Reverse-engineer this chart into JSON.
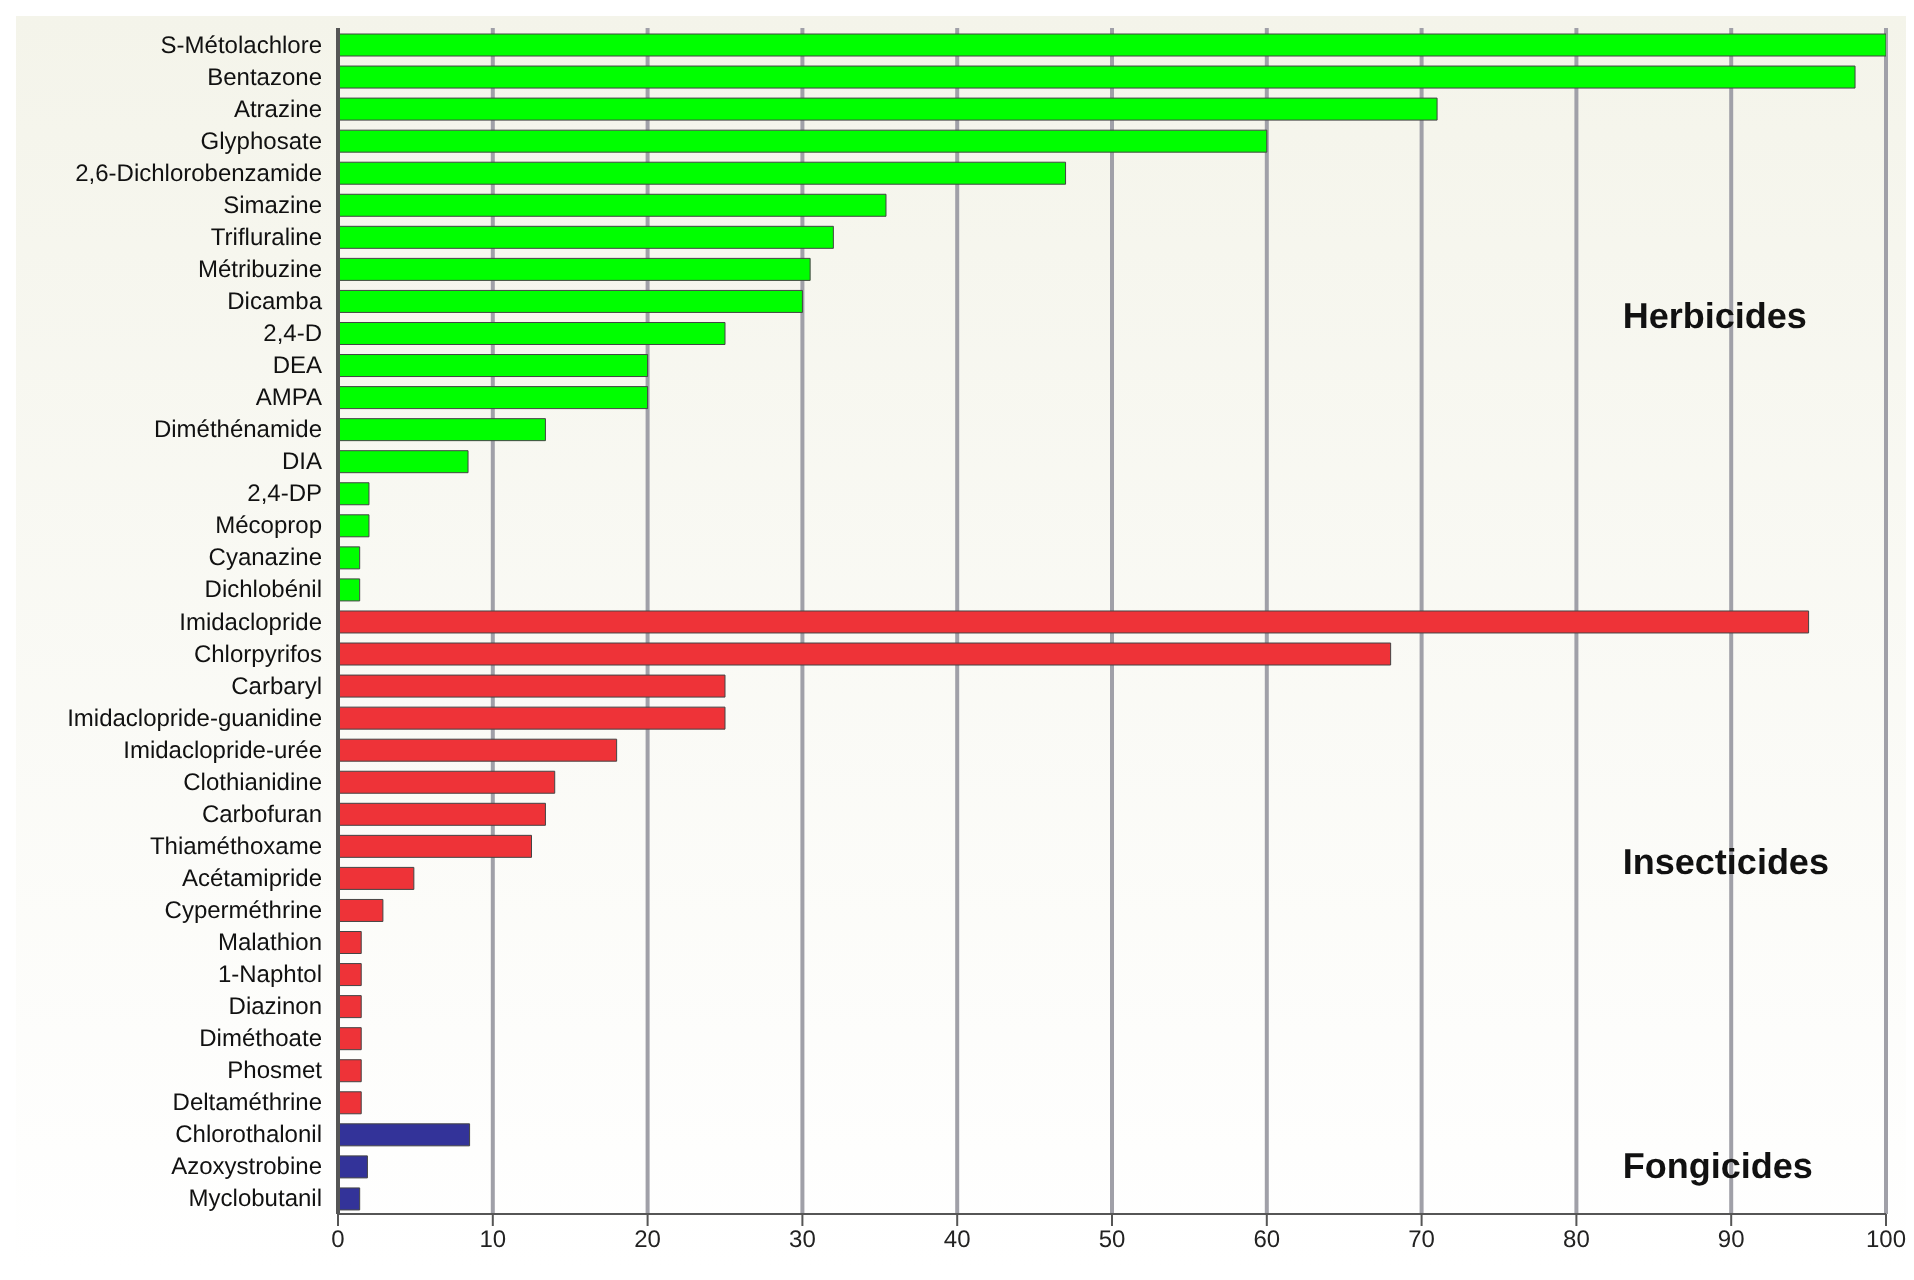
{
  "chart_data": {
    "type": "bar",
    "orientation": "horizontal",
    "stacked": true,
    "categories": [
      "S-Métolachlore",
      "Bentazone",
      "Atrazine",
      "Glyphosate",
      "2,6-Dichlorobenzamide",
      "Simazine",
      "Trifluraline",
      "Métribuzine",
      "Dicamba",
      "2,4-D",
      "DEA",
      "AMPA",
      "Diméthénamide",
      "DIA",
      "2,4-DP",
      "Mécoprop",
      "Cyanazine",
      "Dichlobénil",
      "Imidaclopride",
      "Chlorpyrifos",
      "Carbaryl",
      "Imidaclopride-guanidine",
      "Imidaclopride-urée",
      "Clothianidine",
      "Carbofuran",
      "Thiaméthoxame",
      "Acétamipride",
      "Cyperméthrine",
      "Malathion",
      "1-Naphtol",
      "Diazinon",
      "Diméthoate",
      "Phosmet",
      "Deltaméthrine",
      "Chlorothalonil",
      "Azoxystrobine",
      "Myclobutanil"
    ],
    "series": [
      {
        "name": "Herbicides",
        "color": "#00ff00",
        "values": [
          100,
          98,
          71,
          60,
          47,
          35.4,
          32,
          30.5,
          30,
          25,
          20,
          20,
          13.4,
          8.4,
          2,
          2,
          1.4,
          1.4,
          null,
          null,
          null,
          null,
          null,
          null,
          null,
          null,
          null,
          null,
          null,
          null,
          null,
          null,
          null,
          null,
          null,
          null,
          null
        ]
      },
      {
        "name": "Insecticides",
        "color": "#ee3338",
        "values": [
          null,
          null,
          null,
          null,
          null,
          null,
          null,
          null,
          null,
          null,
          null,
          null,
          null,
          null,
          null,
          null,
          null,
          null,
          95,
          68,
          25,
          25,
          18,
          14,
          13.4,
          12.5,
          4.9,
          2.9,
          1.5,
          1.5,
          1.5,
          1.5,
          1.5,
          1.5,
          null,
          null,
          null
        ]
      },
      {
        "name": "Fongicides",
        "color": "#333399",
        "values": [
          null,
          null,
          null,
          null,
          null,
          null,
          null,
          null,
          null,
          null,
          null,
          null,
          null,
          null,
          null,
          null,
          null,
          null,
          null,
          null,
          null,
          null,
          null,
          null,
          null,
          null,
          null,
          null,
          null,
          null,
          null,
          null,
          null,
          null,
          8.5,
          1.9,
          1.4
        ]
      }
    ],
    "xlim": [
      0,
      100
    ],
    "xticks": [
      0,
      10,
      20,
      30,
      40,
      50,
      60,
      70,
      80,
      90,
      100
    ],
    "grid": "x",
    "legend": false
  }
}
